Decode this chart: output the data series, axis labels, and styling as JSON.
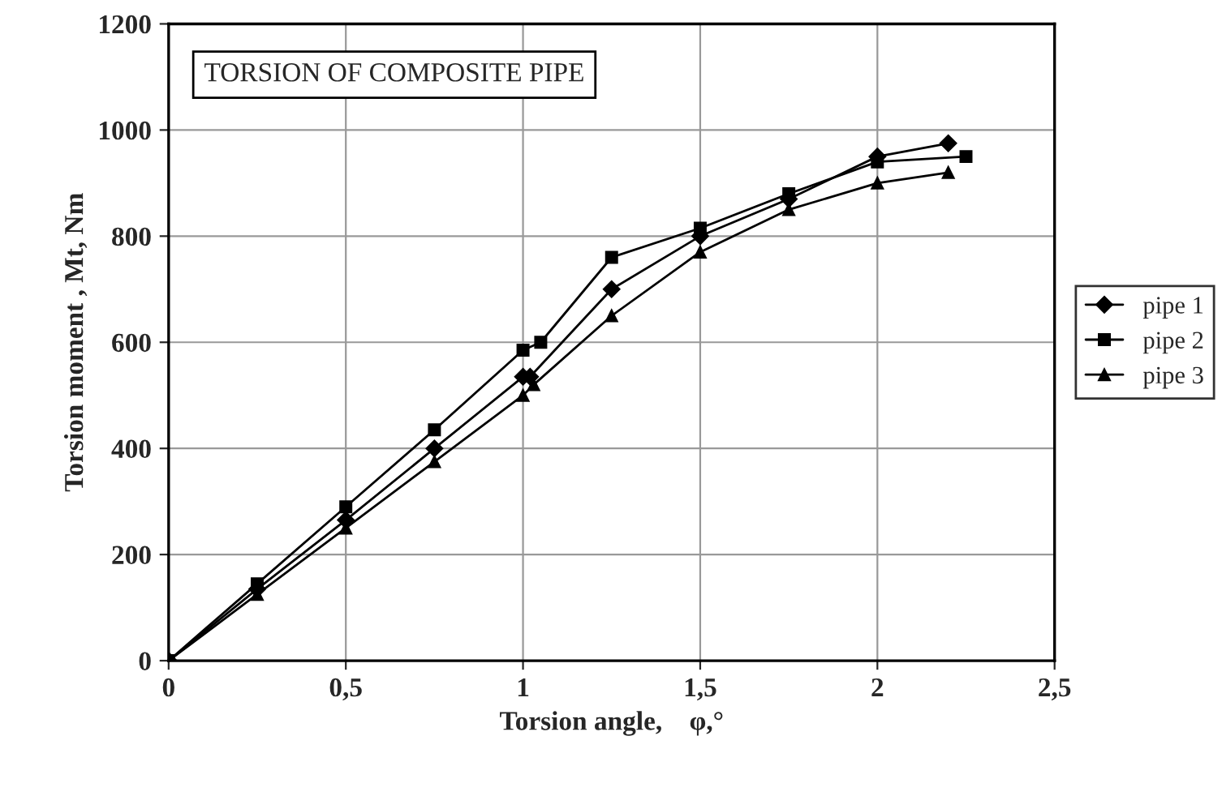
{
  "chart_data": {
    "type": "line",
    "title": "TORSION OF COMPOSITE PIPE",
    "xlabel": "Torsion angle,    φ,°",
    "ylabel": "Torsion moment , Mt, Nm",
    "xlim": [
      0,
      2.5
    ],
    "xticks": [
      0,
      {
        "value": 0.5,
        "label": "0,5"
      },
      1,
      {
        "value": 1.5,
        "label": "1,5"
      },
      2,
      {
        "value": 2.5,
        "label": "2,5"
      }
    ],
    "ylim": [
      0,
      1200
    ],
    "yticks": [
      0,
      200,
      400,
      600,
      800,
      1000,
      1200
    ],
    "grid": true,
    "legend": "right",
    "series": [
      {
        "name": "pipe 1",
        "color": "#000000",
        "marker": "diamond",
        "x": [
          0,
          0.25,
          0.5,
          0.75,
          1.0,
          1.02,
          1.25,
          1.5,
          1.75,
          2.0,
          2.2
        ],
        "values": [
          0,
          135,
          265,
          400,
          535,
          535,
          700,
          800,
          870,
          950,
          975
        ]
      },
      {
        "name": "pipe 2",
        "color": "#000000",
        "marker": "square",
        "x": [
          0,
          0.25,
          0.5,
          0.75,
          1.0,
          1.05,
          1.25,
          1.5,
          1.75,
          2.0,
          2.25
        ],
        "values": [
          0,
          145,
          290,
          435,
          585,
          600,
          760,
          815,
          880,
          940,
          950
        ]
      },
      {
        "name": "pipe 3",
        "color": "#000000",
        "marker": "triangle",
        "x": [
          0,
          0.25,
          0.5,
          0.75,
          1.0,
          1.03,
          1.25,
          1.5,
          1.75,
          2.0,
          2.2
        ],
        "values": [
          0,
          125,
          250,
          375,
          500,
          520,
          650,
          770,
          850,
          900,
          920
        ]
      }
    ]
  }
}
